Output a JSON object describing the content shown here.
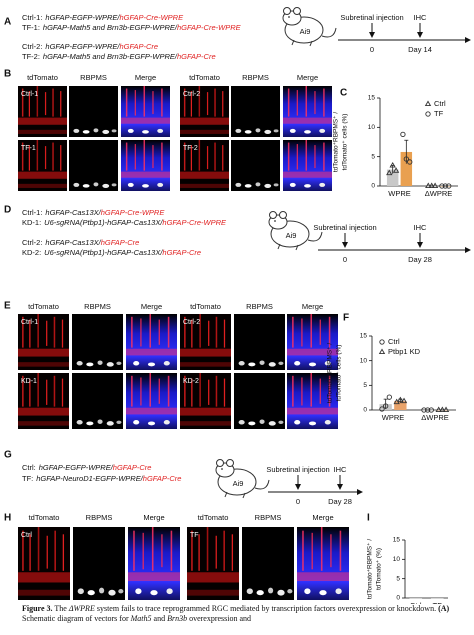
{
  "panel_a": {
    "label": "A",
    "vectors": [
      {
        "name": "Ctrl-1:",
        "base": "hGFAP-EGFP-WPRE/",
        "cre": "hGFAP-Cre-WPRE"
      },
      {
        "name": "TF-1:",
        "base": "hGFAP-Math5 and Brn3b-EGFP-WPRE/",
        "cre": "hGFAP-Cre-WPRE"
      },
      {
        "name": "Ctrl-2:",
        "base": "hGFAP-EGFP-WPRE/",
        "cre": "hGFAP-Cre"
      },
      {
        "name": "TF-2:",
        "base": "hGFAP-Math5 and Brn3b-EGFP-WPRE/",
        "cre": "hGFAP-Cre"
      }
    ],
    "timeline": {
      "mouse": "Ai9",
      "event": "Subretinal injection",
      "end_event": "IHC",
      "start": "0",
      "end": "Day 14"
    }
  },
  "panel_b": {
    "label": "B",
    "columns": [
      "tdTomato",
      "RBPMS",
      "Merge",
      "tdTomato",
      "RBPMS",
      "Merge"
    ],
    "samples": [
      "Ctrl-1",
      "TF-1",
      "Ctrl-2",
      "TF-2"
    ]
  },
  "panel_d": {
    "label": "D",
    "vectors": [
      {
        "name": "Ctrl-1:",
        "base": "hGFAP-Cas13X/",
        "cre": "hGFAP-Cre-WPRE"
      },
      {
        "name": "KD-1:",
        "base": "U6-sgRNA(Ptbp1)-hGFAP-Cas13X/",
        "cre": "hGFAP-Cre-WPRE"
      },
      {
        "name": "Ctrl-2:",
        "base": "hGFAP-Cas13X/",
        "cre": "hGFAP-Cre"
      },
      {
        "name": "KD-2:",
        "base": "U6-sgRNA(Ptbp1)-hGFAP-Cas13X/",
        "cre": "hGFAP-Cre"
      }
    ],
    "timeline": {
      "mouse": "Ai9",
      "event": "Subretinal injection",
      "end_event": "IHC",
      "start": "0",
      "end": "Day 28"
    }
  },
  "panel_e": {
    "label": "E",
    "columns": [
      "tdTomato",
      "RBPMS",
      "Merge",
      "tdTomato",
      "RBPMS",
      "Merge"
    ],
    "samples": [
      "Ctrl-1",
      "KD-1",
      "Ctrl-2",
      "KD-2"
    ]
  },
  "panel_g": {
    "label": "G",
    "vectors": [
      {
        "name": "Ctrl:",
        "base": "hGFAP-EGFP-WPRE/",
        "cre": "hGFAP-Cre"
      },
      {
        "name": "TF:",
        "base": "hGFAP-NeuroD1-EGFP-WPRE/",
        "cre": "hGFAP-Cre"
      }
    ],
    "timeline": {
      "mouse": "Ai9",
      "event": "Subretinal injection",
      "end_event": "IHC",
      "start": "0",
      "end": "Day 28"
    }
  },
  "panel_h": {
    "label": "H",
    "columns": [
      "tdTomato",
      "RBPMS",
      "Merge",
      "tdTomato",
      "RBPMS",
      "Merge"
    ],
    "samples": [
      "Ctrl",
      "TF"
    ]
  },
  "chart_data": [
    {
      "panel": "C",
      "type": "bar",
      "ylabel": [
        "tdTomato⁺RBPMS⁺ /",
        "tdTomato⁺ cells (%)"
      ],
      "categories": [
        "WPRE",
        "ΔWPRE"
      ],
      "ylim": [
        0,
        15
      ],
      "yticks": [
        0,
        5,
        10,
        15
      ],
      "legend": "upper right",
      "series": [
        {
          "name": "Ctrl",
          "color": "#c8c8c8",
          "marker": "triangle",
          "values": [
            2.8,
            0
          ],
          "errors": [
            0.7,
            0
          ],
          "points": [
            [
              2.2,
              3.5,
              2.6
            ],
            [
              0,
              0,
              0
            ]
          ]
        },
        {
          "name": "TF",
          "color": "#e9a050",
          "marker": "circle",
          "values": [
            5.8,
            0
          ],
          "errors": [
            2.0,
            0
          ],
          "points": [
            [
              8.8,
              4.6,
              4.1
            ],
            [
              0,
              0,
              0
            ]
          ]
        }
      ]
    },
    {
      "panel": "F",
      "type": "bar",
      "ylabel": [
        "tdTomato⁺RBPMS⁺ /",
        "tdTomato⁺ cells (%)"
      ],
      "categories": [
        "WPRE",
        "ΔWPRE"
      ],
      "ylim": [
        0,
        15
      ],
      "yticks": [
        0,
        5,
        10,
        15
      ],
      "legend": "upper left",
      "series": [
        {
          "name": "Ctrl",
          "color": "#c8c8c8",
          "marker": "circle",
          "values": [
            1.2,
            0
          ],
          "errors": [
            1.0,
            0
          ],
          "points": [
            [
              0.2,
              0.8,
              2.6
            ],
            [
              0,
              0,
              0
            ]
          ]
        },
        {
          "name": "Ptbp1 KD",
          "color": "#e9a36a",
          "marker": "triangle",
          "values": [
            1.8,
            0
          ],
          "errors": [
            0.4,
            0
          ],
          "points": [
            [
              1.6,
              2.0,
              1.8
            ],
            [
              0,
              0,
              0
            ]
          ]
        }
      ]
    },
    {
      "panel": "I",
      "type": "bar",
      "ylabel": [
        "tdTomato⁺RBPMS⁺ /",
        "tdTomato⁺ (%)"
      ],
      "categories": [
        "Ctrl",
        "TF"
      ],
      "ylim": [
        0,
        15
      ],
      "yticks": [
        0,
        5,
        10,
        15
      ],
      "color": "#c8c8c8",
      "values": [
        0,
        0
      ]
    }
  ],
  "caption": [
    {
      "text": "Figure 3.",
      "style": "bold"
    },
    {
      "text": " The ",
      "style": "normal"
    },
    {
      "text": "ΔWPRE",
      "style": "italic"
    },
    {
      "text": " system fails to trace reprogrammed RGC mediated by transcription factors overexpression or knockdown. ",
      "style": "normal"
    },
    {
      "text": "(A)",
      "style": "bold"
    },
    {
      "text": " Schematic diagram of vectors for ",
      "style": "normal"
    },
    {
      "text": "Math5",
      "style": "italic"
    },
    {
      "text": " and ",
      "style": "normal"
    },
    {
      "text": "Brn3b",
      "style": "italic"
    },
    {
      "text": " overexpression and",
      "style": "normal"
    }
  ]
}
